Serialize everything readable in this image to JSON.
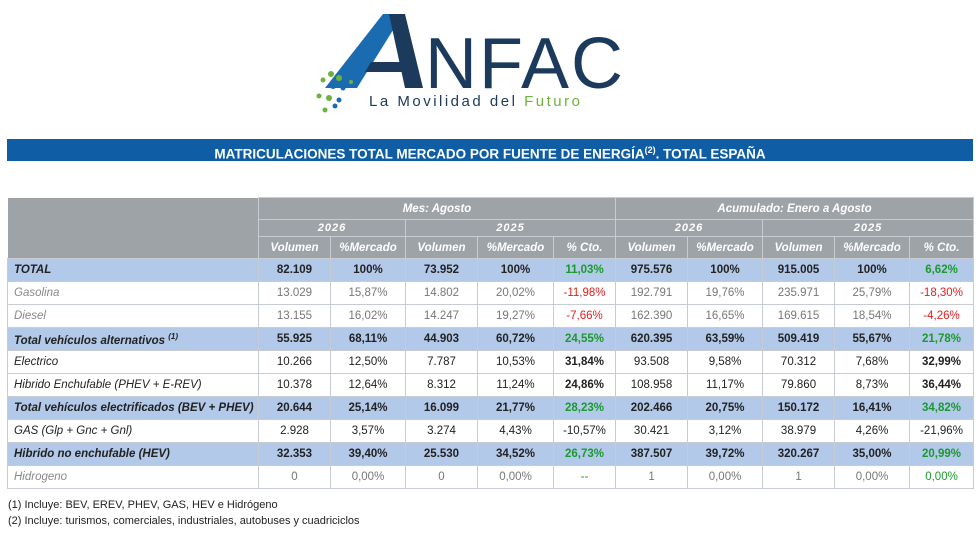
{
  "logo": {
    "name": "ANFAC",
    "tagline": "La Movilidad del Futuro"
  },
  "banner": {
    "title": "MATRICULACIONES TOTAL MERCADO POR FUENTE DE ENERGÍA",
    "sup": "(2)",
    "suffix": ". TOTAL ESPAÑA"
  },
  "table": {
    "group_headers": [
      "Mes: Agosto",
      "Acumulado: Enero a Agosto"
    ],
    "year_headers": [
      "2026",
      "2025",
      "2026",
      "2025"
    ],
    "col_headers": [
      "Volumen",
      "%Mercado",
      "Volumen",
      "%Mercado",
      "% Cto.",
      "Volumen",
      "%Mercado",
      "Volumen",
      "%Mercado",
      "% Cto."
    ],
    "rows": [
      {
        "label": "TOTAL",
        "sup": "",
        "cells": [
          "82.109",
          "100%",
          "73.952",
          "100%",
          "11,03%",
          "975.576",
          "100%",
          "915.005",
          "100%",
          "6,62%"
        ]
      },
      {
        "label": "Gasolina",
        "sup": "",
        "cells": [
          "13.029",
          "15,87%",
          "14.802",
          "20,02%",
          "-11,98%",
          "192.791",
          "19,76%",
          "235.971",
          "25,79%",
          "-18,30%"
        ]
      },
      {
        "label": "Diesel",
        "sup": "",
        "cells": [
          "13.155",
          "16,02%",
          "14.247",
          "19,27%",
          "-7,66%",
          "162.390",
          "16,65%",
          "169.615",
          "18,54%",
          "-4,26%"
        ]
      },
      {
        "label": "Total vehículos alternativos",
        "sup": "(1)",
        "cells": [
          "55.925",
          "68,11%",
          "44.903",
          "60,72%",
          "24,55%",
          "620.395",
          "63,59%",
          "509.419",
          "55,67%",
          "21,78%"
        ]
      },
      {
        "label": "Electrico",
        "sup": "",
        "cells": [
          "10.266",
          "12,50%",
          "7.787",
          "10,53%",
          "31,84%",
          "93.508",
          "9,58%",
          "70.312",
          "7,68%",
          "32,99%"
        ]
      },
      {
        "label": "Hibrido Enchufable (PHEV + E-REV)",
        "sup": "",
        "cells": [
          "10.378",
          "12,64%",
          "8.312",
          "11,24%",
          "24,86%",
          "108.958",
          "11,17%",
          "79.860",
          "8,73%",
          "36,44%"
        ]
      },
      {
        "label": "Total vehículos electrificados (BEV + PHEV)",
        "sup": "",
        "cells": [
          "20.644",
          "25,14%",
          "16.099",
          "21,77%",
          "28,23%",
          "202.466",
          "20,75%",
          "150.172",
          "16,41%",
          "34,82%"
        ]
      },
      {
        "label": "GAS (Glp + Gnc + Gnl)",
        "sup": "",
        "cells": [
          "2.928",
          "3,57%",
          "3.274",
          "4,43%",
          "-10,57%",
          "30.421",
          "3,12%",
          "38.979",
          "4,26%",
          "-21,96%"
        ]
      },
      {
        "label": "Hibrido no enchufable (HEV)",
        "sup": "",
        "cells": [
          "32.353",
          "39,40%",
          "25.530",
          "34,52%",
          "26,73%",
          "387.507",
          "39,72%",
          "320.267",
          "35,00%",
          "20,99%"
        ]
      },
      {
        "label": "Hidrogeno",
        "sup": "",
        "cells": [
          "0",
          "0,00%",
          "0",
          "0,00%",
          "--",
          "1",
          "0,00%",
          "1",
          "0,00%",
          "0,00%"
        ]
      }
    ]
  },
  "notes": [
    "(1) Incluye: BEV, EREV, PHEV, GAS, HEV e Hidrógeno",
    "(2) Incluye: turismos, comerciales, industriales, autobuses y cuadriciclos"
  ],
  "colors": {
    "banner": "#0f5ea5",
    "header_gray": "#9ea3a8",
    "row_blue": "#b3c9e9",
    "positive": "#1a9a2e",
    "negative": "#e02020",
    "logo_blue": "#1b6bb0",
    "logo_dark": "#1b3a5c"
  }
}
